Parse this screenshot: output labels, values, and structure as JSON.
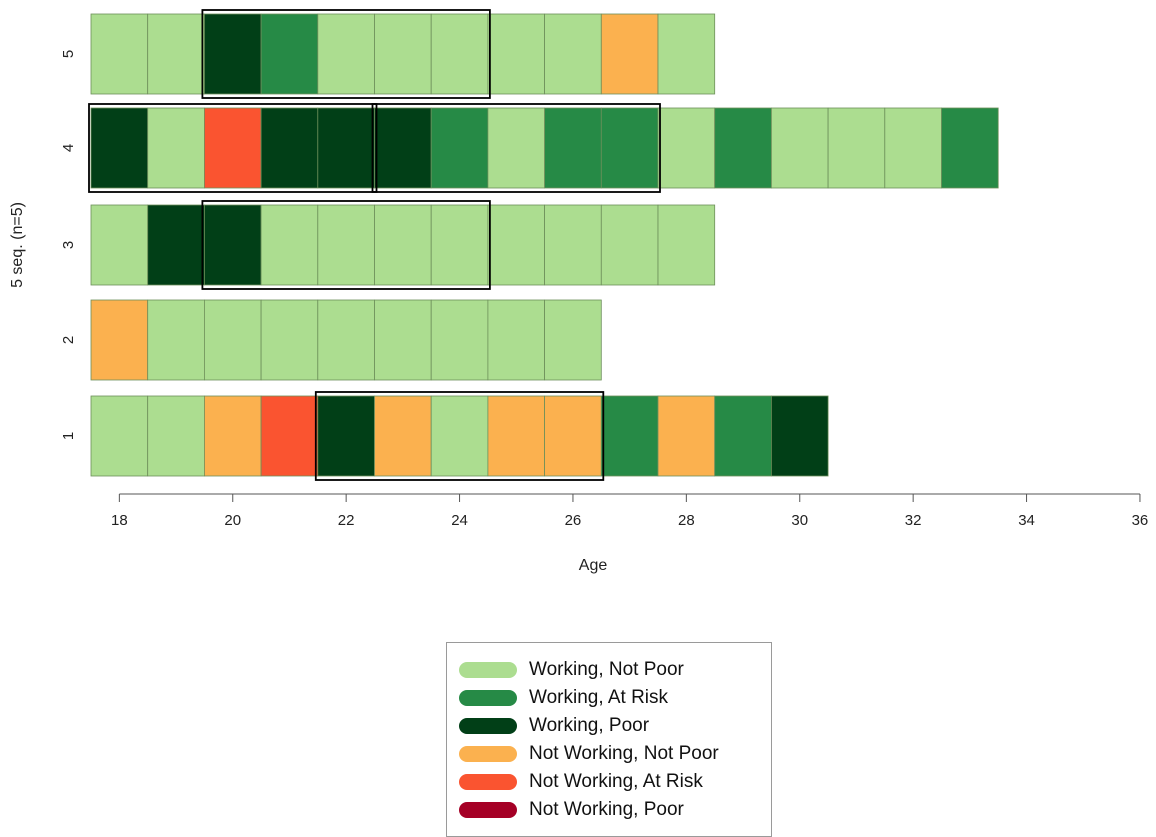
{
  "chart_data": {
    "type": "sequence-index",
    "xlabel": "Age",
    "ylabel": "5 seq. (n=5)",
    "xlim": [
      17.5,
      36
    ],
    "x_ticks": [
      18,
      20,
      22,
      24,
      26,
      28,
      30,
      32,
      34,
      36
    ],
    "states": [
      {
        "name": "Working, Not Poor",
        "color": "#acdd90"
      },
      {
        "name": "Working, At Risk",
        "color": "#268a46"
      },
      {
        "name": "Working, Poor",
        "color": "#013f17"
      },
      {
        "name": "Not Working, Not Poor",
        "color": "#fbb14f"
      },
      {
        "name": "Not Working, At Risk",
        "color": "#fa5430"
      },
      {
        "name": "Not Working, Poor",
        "color": "#a50026"
      }
    ],
    "sequences": [
      {
        "label": "5",
        "start_age": 18,
        "states": [
          0,
          0,
          2,
          1,
          0,
          0,
          0,
          0,
          0,
          3,
          0
        ],
        "highlights": [
          [
            20,
            24
          ]
        ]
      },
      {
        "label": "4",
        "start_age": 18,
        "states": [
          2,
          0,
          4,
          2,
          2,
          2,
          1,
          0,
          1,
          1,
          0,
          1,
          0,
          0,
          0,
          1
        ],
        "highlights": [
          [
            18,
            22
          ],
          [
            23,
            27
          ]
        ]
      },
      {
        "label": "3",
        "start_age": 18,
        "states": [
          0,
          2,
          2,
          0,
          0,
          0,
          0,
          0,
          0,
          0,
          0
        ],
        "highlights": [
          [
            20,
            24
          ]
        ]
      },
      {
        "label": "2",
        "start_age": 18,
        "states": [
          3,
          0,
          0,
          0,
          0,
          0,
          0,
          0,
          0
        ],
        "highlights": []
      },
      {
        "label": "1",
        "start_age": 18,
        "states": [
          0,
          0,
          3,
          4,
          2,
          3,
          0,
          3,
          3,
          1,
          3,
          1,
          2
        ],
        "highlights": [
          [
            22,
            26
          ]
        ]
      }
    ]
  }
}
